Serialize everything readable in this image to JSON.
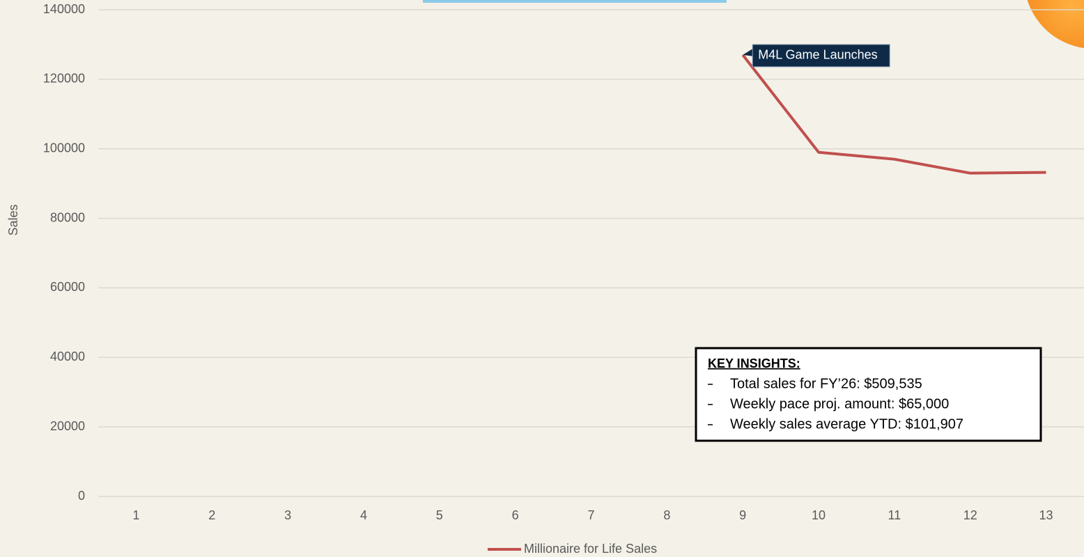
{
  "chart_data": {
    "type": "line",
    "y_label": "Sales",
    "categories": [
      "1",
      "2",
      "3",
      "4",
      "5",
      "6",
      "7",
      "8",
      "9",
      "10",
      "11",
      "12",
      "13"
    ],
    "series": [
      {
        "name": "Millionaire for Life Sales",
        "color": "#c0504d",
        "values": [
          null,
          null,
          null,
          null,
          null,
          null,
          null,
          null,
          127000,
          99000,
          97000,
          93000,
          93200
        ]
      }
    ],
    "ylim": [
      0,
      140000
    ],
    "yticks": [
      0,
      20000,
      40000,
      60000,
      80000,
      100000,
      120000,
      140000
    ],
    "grid": true,
    "legend": "bottom",
    "annotation": {
      "text": "M4L Game Launches",
      "category_index": 8
    },
    "insights": {
      "title": "KEY INSIGHTS:",
      "items": [
        "Total sales for FY’26: $509,535",
        "Weekly pace proj. amount: $65,000",
        "Weekly sales average YTD: $101,907"
      ]
    }
  }
}
